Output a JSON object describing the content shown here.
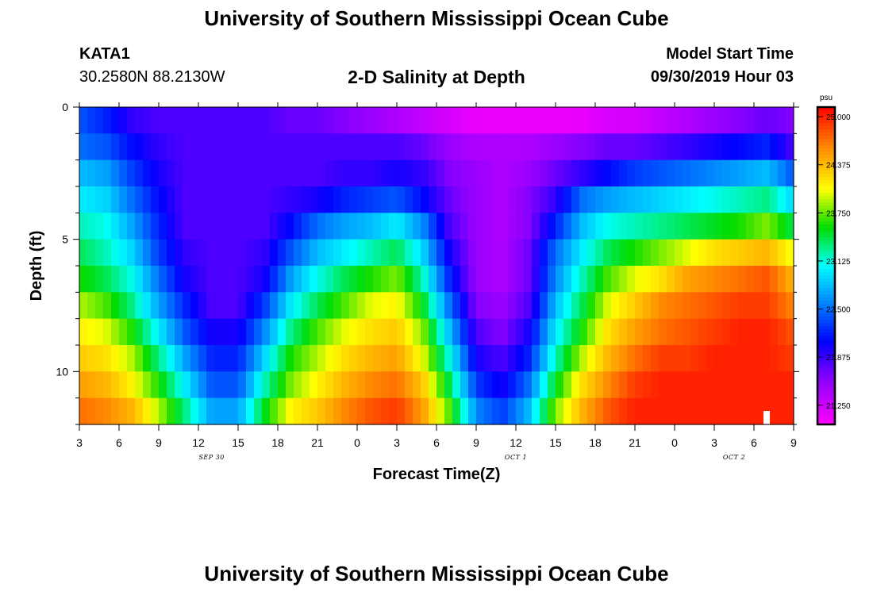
{
  "header": {
    "title": "University of Southern Mississippi Ocean Cube",
    "station": "KATA1",
    "coordinates": "30.2580N 88.2130W",
    "plot_title": "2-D Salinity at Depth",
    "model_start_label": "Model Start Time",
    "model_start_value": "09/30/2019 Hour 03"
  },
  "footer": {
    "title": "University of Southern Mississippi Ocean Cube"
  },
  "chart_data": {
    "type": "heatmap",
    "title": "2-D Salinity at Depth",
    "xlabel": "Forecast Time(Z)",
    "ylabel": "Depth (ft)",
    "x_tick_labels": [
      "3",
      "6",
      "9",
      "12",
      "15",
      "18",
      "21",
      "0",
      "3",
      "6",
      "9",
      "12",
      "15",
      "18",
      "21",
      "0",
      "3",
      "6",
      "9"
    ],
    "x_range_hours": [
      0,
      54
    ],
    "date_labels": [
      {
        "text": "SEP 30",
        "hour": 10
      },
      {
        "text": "OCT 1",
        "hour": 33
      },
      {
        "text": "OCT 2",
        "hour": 49.5
      }
    ],
    "y_ticks": [
      0,
      5,
      10
    ],
    "ylim": [
      0,
      12
    ],
    "y_reversed": true,
    "colorbar": {
      "unit": "psu",
      "ticks": [
        "25.000",
        "24.375",
        "23.750",
        "23.125",
        "22.500",
        "21.875",
        "21.250"
      ],
      "range": [
        21.0,
        25.125
      ]
    },
    "hours": [
      0,
      2,
      4,
      6,
      8,
      10,
      12,
      14,
      16,
      18,
      20,
      22,
      24,
      26,
      28,
      30,
      32,
      34,
      36,
      38,
      40,
      42,
      44,
      46,
      48,
      50,
      52,
      54
    ],
    "depths": [
      0.5,
      1.5,
      2.5,
      3.5,
      4.5,
      5.5,
      6.5,
      7.5,
      8.5,
      9.5,
      10.5,
      11.5
    ],
    "values": [
      [
        22.4,
        22.2,
        21.9,
        21.8,
        21.8,
        21.8,
        21.8,
        21.8,
        21.7,
        21.7,
        21.6,
        21.5,
        21.4,
        21.3,
        21.2,
        21.1,
        21.1,
        21.1,
        21.1,
        21.1,
        21.2,
        21.2,
        21.3,
        21.4,
        21.5,
        21.6,
        21.7,
        21.6
      ],
      [
        22.5,
        22.4,
        22.1,
        21.9,
        21.8,
        21.8,
        21.8,
        21.8,
        21.8,
        21.8,
        21.8,
        21.8,
        21.8,
        21.7,
        21.5,
        21.4,
        21.4,
        21.4,
        21.5,
        21.6,
        21.7,
        21.7,
        21.8,
        21.9,
        22.0,
        22.1,
        22.2,
        21.8
      ],
      [
        22.8,
        22.7,
        22.3,
        22.0,
        21.8,
        21.8,
        21.8,
        21.8,
        21.8,
        21.8,
        21.9,
        21.9,
        22.0,
        21.9,
        21.6,
        21.5,
        21.4,
        21.5,
        21.7,
        21.9,
        22.1,
        22.3,
        22.4,
        22.5,
        22.6,
        22.7,
        22.8,
        22.4
      ],
      [
        23.0,
        22.9,
        22.5,
        22.1,
        21.8,
        21.8,
        21.8,
        21.8,
        21.9,
        22.0,
        22.2,
        22.3,
        22.4,
        22.1,
        21.7,
        21.5,
        21.4,
        21.6,
        21.9,
        22.5,
        22.7,
        22.8,
        22.9,
        23.0,
        23.1,
        23.2,
        23.3,
        22.9
      ],
      [
        23.2,
        23.1,
        22.7,
        22.2,
        21.8,
        21.8,
        21.8,
        21.8,
        22.1,
        22.5,
        22.7,
        22.8,
        23.0,
        22.6,
        21.8,
        21.5,
        21.4,
        21.6,
        22.2,
        22.8,
        23.1,
        23.2,
        23.3,
        23.4,
        23.5,
        23.6,
        23.8,
        23.4
      ],
      [
        23.4,
        23.2,
        22.9,
        22.3,
        21.9,
        21.8,
        21.8,
        21.9,
        22.4,
        22.8,
        23.0,
        23.2,
        23.4,
        22.9,
        22.0,
        21.5,
        21.4,
        21.7,
        22.5,
        23.0,
        23.4,
        23.6,
        23.8,
        24.0,
        24.2,
        24.3,
        24.4,
        24.0
      ],
      [
        23.6,
        23.4,
        23.1,
        22.5,
        22.0,
        21.8,
        21.8,
        22.0,
        22.7,
        23.1,
        23.4,
        23.6,
        23.8,
        23.2,
        22.2,
        21.5,
        21.4,
        21.7,
        22.6,
        23.2,
        23.7,
        24.0,
        24.2,
        24.5,
        24.6,
        24.7,
        24.8,
        24.4
      ],
      [
        23.9,
        23.7,
        23.3,
        22.7,
        22.2,
        21.8,
        21.8,
        22.3,
        23.0,
        23.4,
        23.7,
        24.0,
        24.1,
        23.5,
        22.5,
        21.6,
        21.5,
        21.8,
        22.8,
        23.4,
        24.0,
        24.3,
        24.6,
        24.7,
        24.8,
        24.9,
        24.9,
        24.6
      ],
      [
        24.1,
        24.0,
        23.6,
        23.0,
        22.4,
        22.0,
        22.0,
        22.6,
        23.3,
        23.7,
        24.0,
        24.2,
        24.3,
        23.8,
        22.8,
        21.8,
        21.6,
        22.0,
        23.0,
        23.6,
        24.2,
        24.5,
        24.7,
        24.8,
        24.9,
        25.0,
        25.0,
        24.8
      ],
      [
        24.3,
        24.2,
        23.9,
        23.3,
        22.7,
        22.2,
        22.2,
        22.9,
        23.6,
        23.9,
        24.2,
        24.4,
        24.5,
        24.0,
        23.1,
        22.0,
        21.8,
        22.2,
        23.2,
        23.9,
        24.4,
        24.7,
        24.9,
        24.9,
        25.0,
        25.0,
        25.0,
        24.9
      ],
      [
        24.5,
        24.4,
        24.1,
        23.6,
        23.0,
        22.4,
        22.4,
        23.2,
        23.8,
        24.1,
        24.4,
        24.6,
        24.7,
        24.3,
        23.4,
        22.3,
        22.0,
        22.5,
        23.5,
        24.2,
        24.6,
        24.9,
        25.0,
        25.0,
        25.0,
        25.0,
        25.0,
        25.0
      ],
      [
        24.7,
        24.6,
        24.4,
        23.9,
        23.3,
        22.7,
        22.7,
        23.5,
        24.1,
        24.3,
        24.6,
        24.8,
        24.9,
        24.5,
        23.7,
        22.6,
        22.3,
        22.8,
        23.8,
        24.4,
        24.8,
        25.0,
        25.0,
        25.0,
        25.0,
        25.0,
        25.0,
        25.0
      ]
    ]
  }
}
